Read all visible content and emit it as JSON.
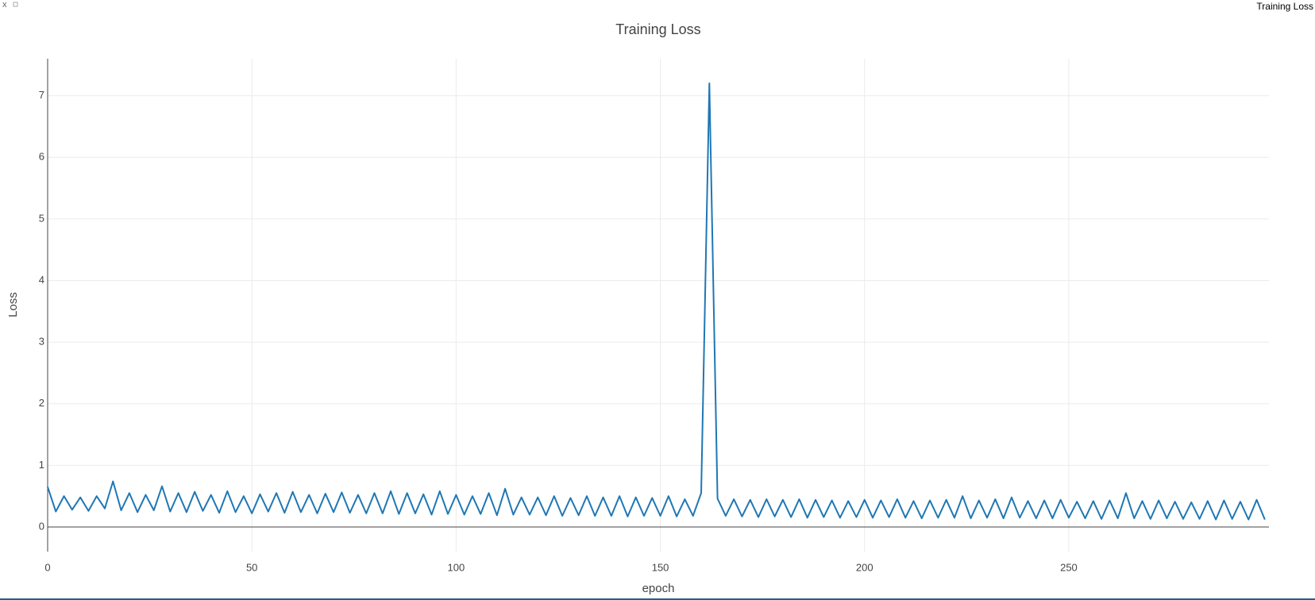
{
  "window": {
    "tab_title": "Training Loss",
    "close_label": "x"
  },
  "chart_data": {
    "type": "line",
    "title": "Training Loss",
    "x_label": "epoch",
    "y_label": "Loss",
    "color": "#1f77b4",
    "grid": true,
    "xlim": [
      0,
      299
    ],
    "xticks": [
      0,
      50,
      100,
      150,
      200,
      250
    ],
    "ylim": [
      -0.4,
      7.6
    ],
    "yticks": [
      0,
      1,
      2,
      3,
      4,
      5,
      6,
      7
    ],
    "x": [
      0,
      2,
      4,
      6,
      8,
      10,
      12,
      14,
      16,
      18,
      20,
      22,
      24,
      26,
      28,
      30,
      32,
      34,
      36,
      38,
      40,
      42,
      44,
      46,
      48,
      50,
      52,
      54,
      56,
      58,
      60,
      62,
      64,
      66,
      68,
      70,
      72,
      74,
      76,
      78,
      80,
      82,
      84,
      86,
      88,
      90,
      92,
      94,
      96,
      98,
      100,
      102,
      104,
      106,
      108,
      110,
      112,
      114,
      116,
      118,
      120,
      122,
      124,
      126,
      128,
      130,
      132,
      134,
      136,
      138,
      140,
      142,
      144,
      146,
      148,
      150,
      152,
      154,
      156,
      158,
      160,
      162,
      164,
      166,
      168,
      170,
      172,
      174,
      176,
      178,
      180,
      182,
      184,
      186,
      188,
      190,
      192,
      194,
      196,
      198,
      200,
      202,
      204,
      206,
      208,
      210,
      212,
      214,
      216,
      218,
      220,
      222,
      224,
      226,
      228,
      230,
      232,
      234,
      236,
      238,
      240,
      242,
      244,
      246,
      248,
      250,
      252,
      254,
      256,
      258,
      260,
      262,
      264,
      266,
      268,
      270,
      272,
      274,
      276,
      278,
      280,
      282,
      284,
      286,
      288,
      290,
      292,
      294,
      296,
      298
    ],
    "values": [
      0.65,
      0.25,
      0.5,
      0.28,
      0.48,
      0.26,
      0.5,
      0.3,
      0.74,
      0.27,
      0.55,
      0.24,
      0.52,
      0.27,
      0.66,
      0.25,
      0.55,
      0.24,
      0.57,
      0.26,
      0.52,
      0.23,
      0.58,
      0.24,
      0.5,
      0.22,
      0.53,
      0.25,
      0.55,
      0.23,
      0.57,
      0.24,
      0.52,
      0.22,
      0.54,
      0.24,
      0.56,
      0.23,
      0.52,
      0.22,
      0.55,
      0.22,
      0.58,
      0.21,
      0.55,
      0.22,
      0.53,
      0.2,
      0.58,
      0.21,
      0.52,
      0.2,
      0.5,
      0.21,
      0.55,
      0.19,
      0.62,
      0.2,
      0.48,
      0.2,
      0.48,
      0.19,
      0.5,
      0.18,
      0.47,
      0.19,
      0.5,
      0.18,
      0.48,
      0.18,
      0.5,
      0.17,
      0.48,
      0.18,
      0.47,
      0.18,
      0.5,
      0.17,
      0.45,
      0.18,
      0.55,
      7.2,
      0.46,
      0.18,
      0.45,
      0.17,
      0.44,
      0.16,
      0.45,
      0.17,
      0.44,
      0.16,
      0.45,
      0.15,
      0.44,
      0.16,
      0.43,
      0.15,
      0.42,
      0.16,
      0.44,
      0.15,
      0.43,
      0.16,
      0.45,
      0.15,
      0.42,
      0.14,
      0.43,
      0.15,
      0.44,
      0.15,
      0.5,
      0.14,
      0.43,
      0.15,
      0.45,
      0.14,
      0.48,
      0.15,
      0.42,
      0.14,
      0.43,
      0.14,
      0.44,
      0.15,
      0.41,
      0.14,
      0.42,
      0.13,
      0.43,
      0.14,
      0.55,
      0.14,
      0.42,
      0.13,
      0.43,
      0.14,
      0.41,
      0.13,
      0.4,
      0.13,
      0.42,
      0.12,
      0.43,
      0.13,
      0.41,
      0.12,
      0.44,
      0.12
    ]
  }
}
